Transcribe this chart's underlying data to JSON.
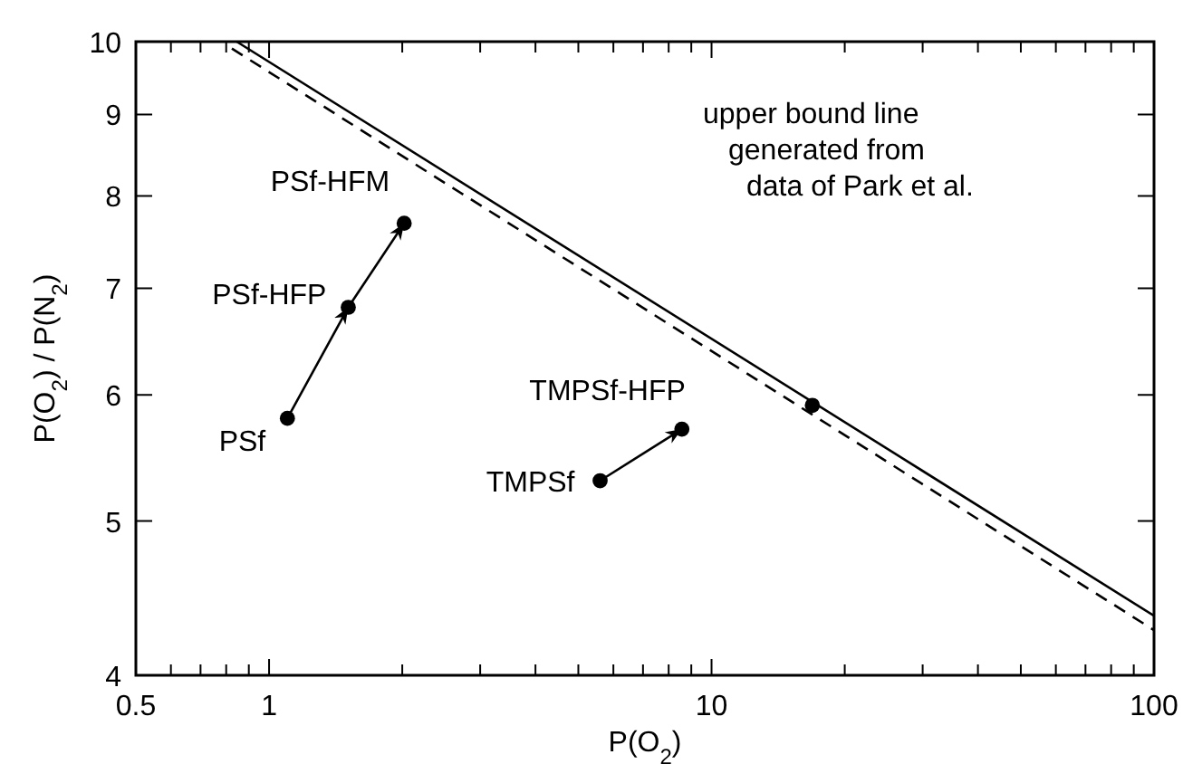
{
  "chart_data": {
    "type": "scatter",
    "xlabel": "P(O$_{2}$)",
    "ylabel": "P(O$_{2}$) / P(N$_{2}$)",
    "log": "xy",
    "xlim": [
      0.5,
      100
    ],
    "ylim": [
      4,
      10
    ],
    "xticks": [
      0.5,
      {
        "value": 0.6,
        "label": null
      },
      {
        "value": 0.7,
        "label": null
      },
      {
        "value": 0.8,
        "label": null
      },
      {
        "value": 0.9,
        "label": null
      },
      1,
      {
        "value": 2,
        "label": null
      },
      {
        "value": 3,
        "label": null
      },
      {
        "value": 4,
        "label": null
      },
      {
        "value": 5,
        "label": null
      },
      {
        "value": 6,
        "label": null
      },
      {
        "value": 7,
        "label": null
      },
      {
        "value": 8,
        "label": null
      },
      {
        "value": 9,
        "label": null
      },
      10,
      {
        "value": 20,
        "label": null
      },
      {
        "value": 30,
        "label": null
      },
      {
        "value": 40,
        "label": null
      },
      {
        "value": 50,
        "label": null
      },
      {
        "value": 60,
        "label": null
      },
      {
        "value": 70,
        "label": null
      },
      {
        "value": 80,
        "label": null
      },
      {
        "value": 90,
        "label": null
      },
      100
    ],
    "yticks": [
      4,
      5,
      6,
      7,
      8,
      9,
      10
    ],
    "grid": false,
    "marker": "circle",
    "series": [
      {
        "color": "#000000",
        "x": [
          1.1,
          1.51,
          2.02,
          5.6,
          8.57,
          16.9
        ],
        "values": [
          5.8,
          6.81,
          7.69,
          5.3,
          5.71,
          5.91
        ]
      },
      {
        "type": "line",
        "color": "#000000",
        "line_style": "solid",
        "marker": "none",
        "x": [
          1.1,
          1.51,
          2.02
        ],
        "values": [
          5.8,
          6.81,
          7.69
        ]
      },
      {
        "type": "line",
        "color": "#000000",
        "line_style": "solid",
        "marker": "none",
        "x": [
          5.6,
          8.57
        ],
        "values": [
          5.3,
          5.71
        ]
      },
      {
        "type": "line",
        "color": "#000000",
        "line_style": "solid",
        "marker": "none",
        "x": [
          0.845,
          100
        ],
        "values": [
          10,
          4.36
        ]
      },
      {
        "type": "line",
        "color": "#000000",
        "line_style": "dashed",
        "marker": "none",
        "x": [
          0.824,
          100
        ],
        "values": [
          9.9,
          4.27
        ]
      }
    ],
    "annotations": [
      {
        "text": "PSf",
        "x": 1.1,
        "y": 5.8
      },
      {
        "text": "PSf-HFP",
        "x": 1.51,
        "y": 6.81
      },
      {
        "text": "PSf-HFM",
        "x": 2.02,
        "y": 7.69
      },
      {
        "text": "TMPSf",
        "x": 5.6,
        "y": 5.3
      },
      {
        "text": "TMPSf-HFP",
        "x": 8.57,
        "y": 5.71
      },
      "upper bound line\ngenerated from\ndata of Park et al."
    ]
  }
}
